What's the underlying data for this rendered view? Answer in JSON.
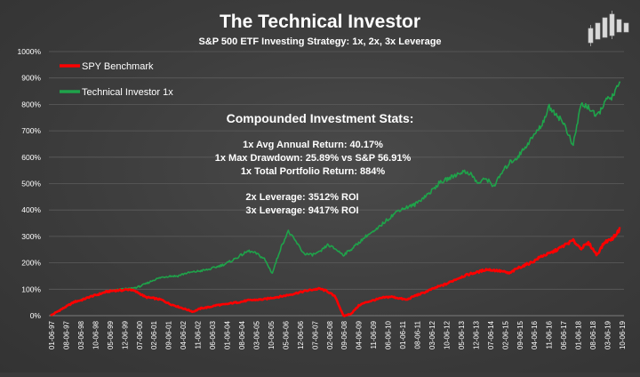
{
  "chart_data": {
    "type": "line",
    "title": "The Technical Investor",
    "subtitle": "S&P 500 ETF Investing Strategy: 1x, 2x, 3x Leverage",
    "y_ticks": [
      "1000%",
      "900%",
      "800%",
      "700%",
      "600%",
      "500%",
      "400%",
      "300%",
      "200%",
      "100%",
      "0%"
    ],
    "ylim": [
      0,
      1000
    ],
    "grid": true,
    "legend_position": "top-left",
    "x_ticks": [
      "01-06-97",
      "08-06-97",
      "03-06-98",
      "10-06-98",
      "05-06-99",
      "12-06-99",
      "07-06-00",
      "02-06-01",
      "09-06-01",
      "04-06-02",
      "11-06-02",
      "06-06-03",
      "01-06-04",
      "08-06-04",
      "03-06-05",
      "10-06-05",
      "05-06-06",
      "12-06-06",
      "07-06-07",
      "02-06-08",
      "09-06-08",
      "04-06-09",
      "11-06-09",
      "06-06-10",
      "01-06-11",
      "08-06-11",
      "03-06-12",
      "10-06-12",
      "05-06-13",
      "12-06-13",
      "07-06-14",
      "02-06-15",
      "09-06-15",
      "04-06-16",
      "11-06-16",
      "06-06-17",
      "01-06-18",
      "08-06-18",
      "03-06-19",
      "10-06-19"
    ],
    "series": [
      {
        "name": "SPY Benchmark",
        "color": "#ff0000",
        "values": [
          0,
          18,
          35,
          52,
          60,
          72,
          80,
          90,
          95,
          96,
          100,
          88,
          70,
          66,
          60,
          45,
          35,
          25,
          15,
          28,
          32,
          40,
          42,
          48,
          52,
          58,
          60,
          62,
          68,
          72,
          78,
          85,
          92,
          98,
          102,
          92,
          70,
          -2,
          8,
          40,
          52,
          60,
          68,
          72,
          66,
          60,
          75,
          85,
          98,
          110,
          120,
          135,
          148,
          158,
          165,
          175,
          172,
          168,
          160,
          180,
          192,
          205,
          225,
          235,
          250,
          268,
          285,
          255,
          275,
          230,
          278,
          292,
          330
        ]
      },
      {
        "name": "Technical Investor 1x",
        "color": "#1fa34a",
        "values": [
          0,
          18,
          35,
          52,
          62,
          72,
          80,
          90,
          95,
          100,
          102,
          108,
          120,
          135,
          145,
          150,
          150,
          160,
          165,
          170,
          175,
          185,
          195,
          210,
          228,
          245,
          235,
          215,
          160,
          250,
          320,
          280,
          235,
          230,
          240,
          268,
          252,
          230,
          252,
          278,
          305,
          320,
          350,
          375,
          400,
          410,
          420,
          445,
          468,
          500,
          515,
          530,
          545,
          540,
          500,
          520,
          490,
          540,
          580,
          600,
          640,
          680,
          720,
          790,
          760,
          720,
          640,
          800,
          790,
          750,
          810,
          830,
          884
        ]
      }
    ],
    "annotations": {
      "stats_heading": "Compounded Investment Stats:",
      "lines": [
        "1x Avg Annual Return: 40.17%",
        "1x Max Drawdown: 25.89% vs S&P 56.91%",
        "1x Total Portfolio Return: 884%",
        "",
        "2x Leverage: 3512% ROI",
        "3x Leverage: 9417% ROI"
      ]
    }
  }
}
